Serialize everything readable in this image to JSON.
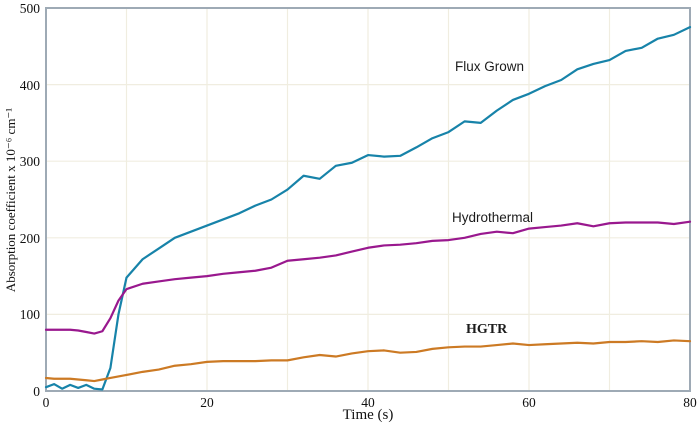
{
  "theme": {
    "background": "#ffffff",
    "axis_border_color": "#9EAAB5",
    "gridline_color": "#F0EDE0",
    "text_color": "#111111"
  },
  "chart_data": {
    "type": "line",
    "title": "",
    "xlabel": "Time (s)",
    "ylabel": "Absorption coefficient x 10⁻⁶ cm⁻¹",
    "xlim": [
      0,
      80
    ],
    "ylim": [
      0,
      500
    ],
    "x_ticks": [
      0,
      20,
      40,
      60,
      80
    ],
    "y_ticks": [
      0,
      100,
      200,
      300,
      400,
      500
    ],
    "x_gridlines": [
      10,
      20,
      30,
      40,
      50,
      60,
      70
    ],
    "y_gridlines": [
      100,
      200,
      300,
      400
    ],
    "grid": true,
    "legend_position": "inline-labels",
    "x": [
      0,
      1,
      2,
      3,
      4,
      5,
      6,
      7,
      8,
      9,
      10,
      12,
      14,
      16,
      18,
      20,
      22,
      24,
      26,
      28,
      30,
      32,
      34,
      36,
      38,
      40,
      42,
      44,
      46,
      48,
      50,
      52,
      54,
      56,
      58,
      60,
      62,
      64,
      66,
      68,
      70,
      72,
      74,
      76,
      78,
      80
    ],
    "series": [
      {
        "name": "Flux Grown",
        "color": "#1783A9",
        "values": [
          5,
          9,
          3,
          8,
          4,
          8,
          3,
          2,
          30,
          100,
          148,
          172,
          186,
          200,
          208,
          216,
          224,
          232,
          242,
          250,
          263,
          281,
          277,
          294,
          298,
          308,
          306,
          307,
          318,
          330,
          338,
          352,
          350,
          366,
          380,
          388,
          398,
          406,
          420,
          427,
          432,
          444,
          448,
          460,
          465,
          475
        ]
      },
      {
        "name": "Hydrothermal",
        "color": "#99188E",
        "values": [
          80,
          80,
          80,
          80,
          79,
          77,
          75,
          78,
          95,
          118,
          133,
          140,
          143,
          146,
          148,
          150,
          153,
          155,
          157,
          161,
          170,
          172,
          174,
          177,
          182,
          187,
          190,
          191,
          193,
          196,
          197,
          200,
          205,
          208,
          206,
          212,
          214,
          216,
          219,
          215,
          219,
          220,
          220,
          220,
          218,
          221
        ]
      },
      {
        "name": "HGTR",
        "color": "#CC7A24",
        "values": [
          17,
          16,
          16,
          16,
          15,
          14,
          13,
          15,
          17,
          19,
          21,
          25,
          28,
          33,
          35,
          38,
          39,
          39,
          39,
          40,
          40,
          44,
          47,
          45,
          49,
          52,
          53,
          50,
          51,
          55,
          57,
          58,
          58,
          60,
          62,
          60,
          61,
          62,
          63,
          62,
          64,
          64,
          65,
          64,
          66,
          65
        ]
      }
    ]
  }
}
